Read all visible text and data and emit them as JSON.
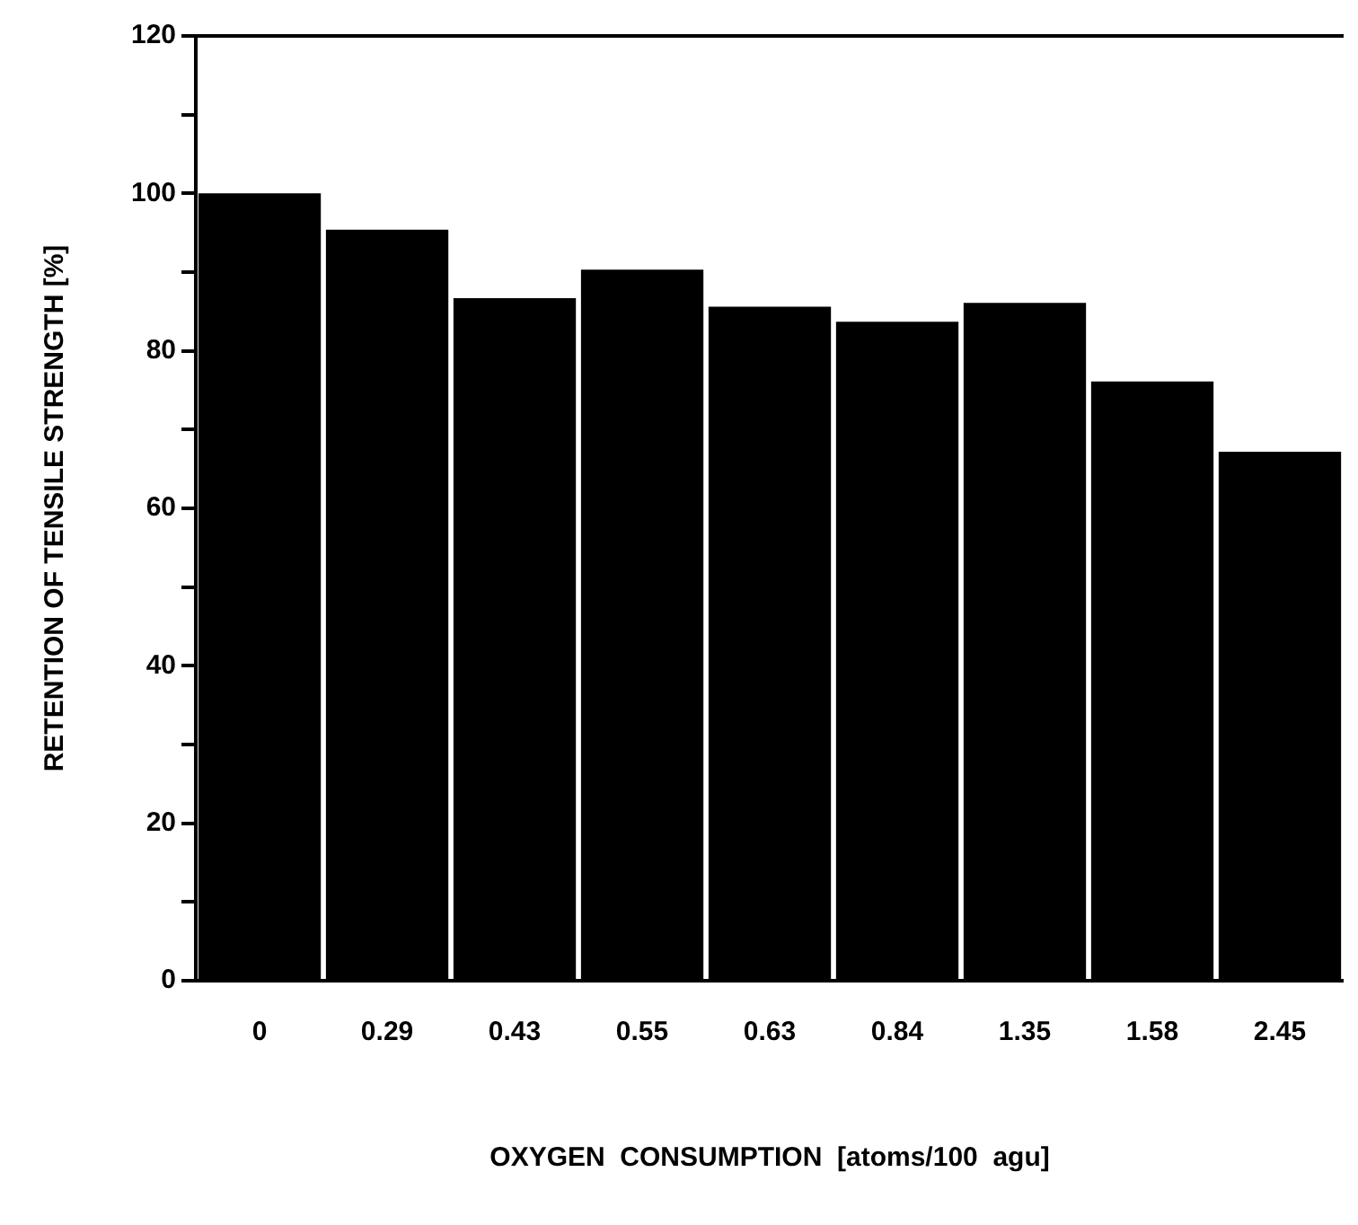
{
  "chart_data": {
    "type": "bar",
    "xlabel": "OXYGEN  CONSUMPTION  [atoms/100  agu]",
    "ylabel": "RETENTION OF TENSILE STRENGTH [%]",
    "categories": [
      "0",
      "0.29",
      "0.43",
      "0.55",
      "0.63",
      "0.84",
      "1.35",
      "1.58",
      "2.45"
    ],
    "values": [
      100,
      95.4,
      86.7,
      90.3,
      85.6,
      83.7,
      86.1,
      76.1,
      67.2
    ],
    "color": "#000000",
    "ylim": [
      0,
      120
    ],
    "yticks": [
      0,
      {
        "value": 10,
        "label": null
      },
      20,
      {
        "value": 30,
        "label": null
      },
      40,
      {
        "value": 50,
        "label": null
      },
      60,
      {
        "value": 70,
        "label": null
      },
      80,
      {
        "value": 90,
        "label": null
      },
      100,
      {
        "value": 110,
        "label": null
      },
      120
    ],
    "grid": false,
    "legend": false
  }
}
